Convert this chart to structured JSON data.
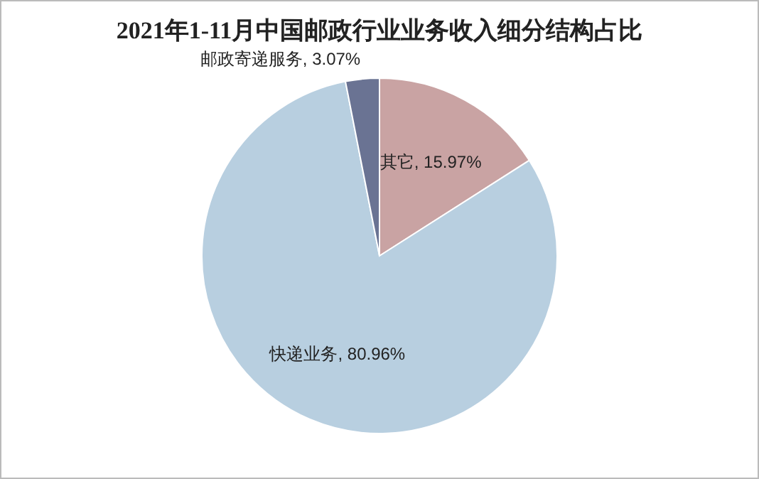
{
  "chart_data": {
    "type": "pie",
    "title": "2021年1-11月中国邮政行业业务收入细分结构占比",
    "categories": [
      "其它",
      "快递业务",
      "邮政寄递服务"
    ],
    "values": [
      15.97,
      80.96,
      3.07
    ],
    "value_labels": [
      "15.97%",
      "80.96%",
      "3.07%"
    ],
    "colors": [
      "#c9a3a3",
      "#b8cfe0",
      "#6a7393"
    ],
    "legend": false
  }
}
